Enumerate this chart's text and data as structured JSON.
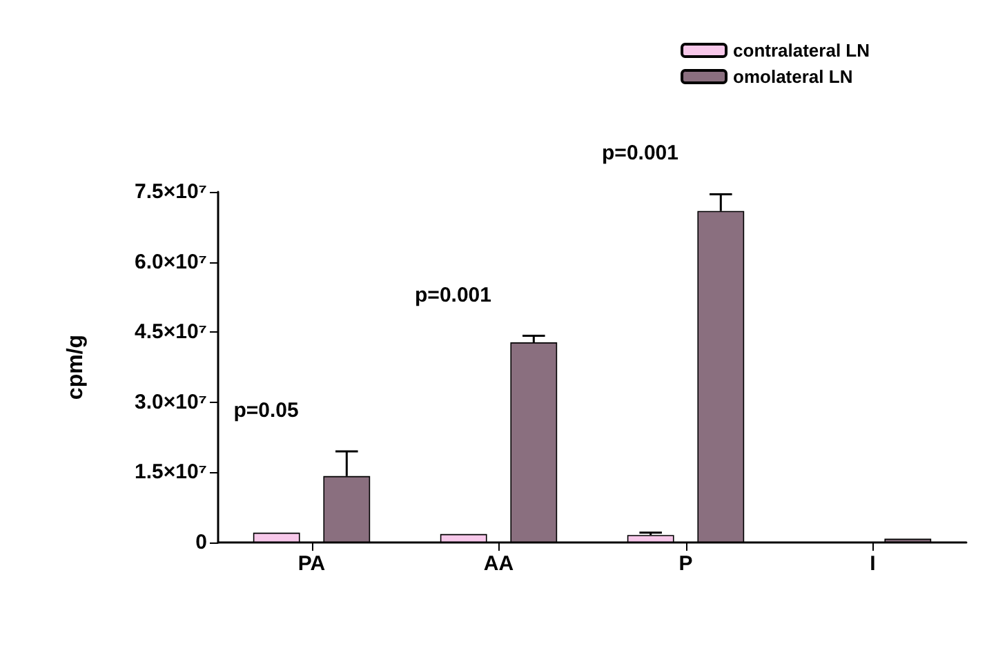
{
  "chart_data": {
    "type": "bar",
    "ylabel": "cpm/g",
    "categories": [
      "PA",
      "AA",
      "P",
      "I"
    ],
    "series": [
      {
        "name": "contralateral LN",
        "color": "#f7c8ea",
        "values": [
          2100000,
          1800000,
          1600000,
          null
        ],
        "errors": [
          null,
          null,
          500000,
          null
        ]
      },
      {
        "name": "omolateral LN",
        "color": "#8a6f7f",
        "values": [
          14200000,
          42800000,
          70900000,
          800000
        ],
        "errors": [
          5300000,
          1400000,
          3600000,
          null
        ]
      }
    ],
    "ylim": [
      0,
      75000000
    ],
    "yticks": [
      0,
      {
        "value": 15000000,
        "label": "1.5×10⁷"
      },
      {
        "value": 30000000,
        "label": "3.0×10⁷"
      },
      {
        "value": 45000000,
        "label": "4.5×10⁷"
      },
      {
        "value": 60000000,
        "label": "6.0×10⁷"
      },
      {
        "value": 75000000,
        "label": "7.5×10⁷"
      }
    ],
    "grid": false,
    "legend": "top right",
    "annotations": [
      "p=0.05",
      "p=0.001",
      "p=0.001"
    ]
  }
}
